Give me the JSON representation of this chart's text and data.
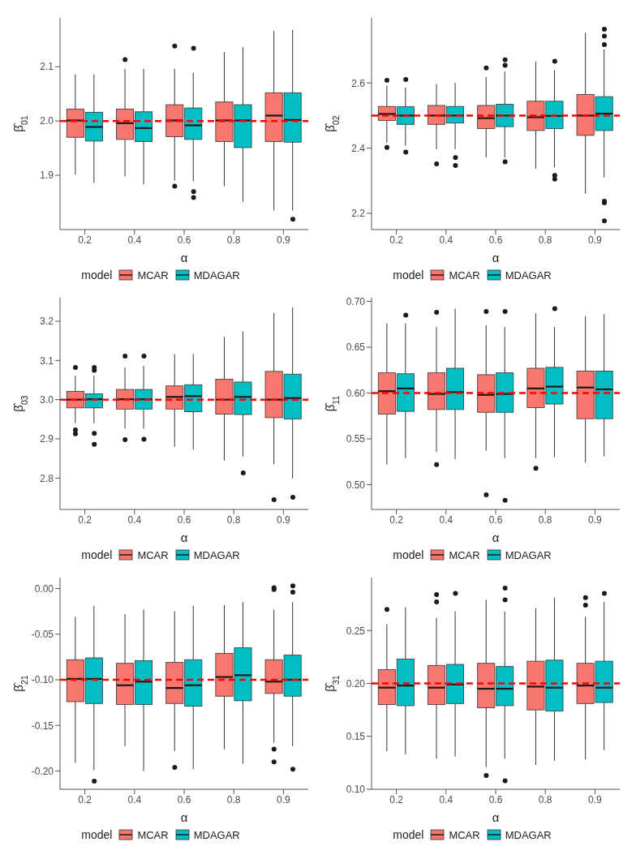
{
  "chart_data": [
    {
      "type": "box",
      "xlabel": "α",
      "ylabel": "β̂$_{01}$",
      "categories": [
        "0.2",
        "0.4",
        "0.6",
        "0.8",
        "0.9"
      ],
      "ylim": [
        1.8,
        2.19
      ],
      "yticks": [
        {
          "value": 1.9,
          "label": "1.9"
        },
        {
          "value": 2.0,
          "label": "2.0"
        },
        {
          "value": 2.1,
          "label": "2.1"
        }
      ],
      "legend": "bottom",
      "legend_title": "model",
      "ref_lines": [
        {
          "axis": "y",
          "value": 2.0,
          "color": "#ff0000",
          "line_style": "dashed"
        }
      ],
      "series": [
        {
          "name": "MCAR",
          "color": "#f8766d",
          "boxes": [
            {
              "low": 1.901,
              "q1": 1.97,
              "median": 2.001,
              "q3": 2.022,
              "high": 2.086
            },
            {
              "low": 1.898,
              "q1": 1.966,
              "median": 1.996,
              "q3": 2.022,
              "high": 2.096,
              "outliers": [
                2.113
              ]
            },
            {
              "low": 1.89,
              "q1": 1.971,
              "median": 2.001,
              "q3": 2.03,
              "high": 2.096,
              "outliers": [
                2.138,
                1.88
              ]
            },
            {
              "low": 1.88,
              "q1": 1.962,
              "median": 2.001,
              "q3": 2.035,
              "high": 2.127
            },
            {
              "low": 1.835,
              "q1": 1.962,
              "median": 2.01,
              "q3": 2.052,
              "high": 2.166
            }
          ]
        },
        {
          "name": "MDAGAR",
          "color": "#00bfc4",
          "boxes": [
            {
              "low": 1.886,
              "q1": 1.963,
              "median": 1.989,
              "q3": 2.016,
              "high": 2.086
            },
            {
              "low": 1.883,
              "q1": 1.962,
              "median": 1.987,
              "q3": 2.017,
              "high": 2.096
            },
            {
              "low": 1.889,
              "q1": 1.966,
              "median": 1.992,
              "q3": 2.024,
              "high": 2.089,
              "outliers": [
                2.134,
                1.87,
                1.859
              ]
            },
            {
              "low": 1.851,
              "q1": 1.951,
              "median": 2.001,
              "q3": 2.03,
              "high": 2.136
            },
            {
              "low": 1.835,
              "q1": 1.961,
              "median": 2.002,
              "q3": 2.052,
              "high": 2.168,
              "outliers": [
                1.819
              ]
            }
          ]
        }
      ]
    },
    {
      "type": "box",
      "xlabel": "α",
      "ylabel": "β̂$_{02}$",
      "categories": [
        "0.2",
        "0.4",
        "0.6",
        "0.8",
        "0.9"
      ],
      "ylim": [
        2.15,
        2.8
      ],
      "yticks": [
        {
          "value": 2.2,
          "label": "2.2"
        },
        {
          "value": 2.4,
          "label": "2.4"
        },
        {
          "value": 2.6,
          "label": "2.6"
        }
      ],
      "legend": "bottom",
      "legend_title": "model",
      "ref_lines": [
        {
          "axis": "y",
          "value": 2.5,
          "color": "#ff0000",
          "line_style": "dashed"
        }
      ],
      "series": [
        {
          "name": "MCAR",
          "color": "#f8766d",
          "boxes": [
            {
              "low": 2.416,
              "q1": 2.485,
              "median": 2.505,
              "q3": 2.528,
              "high": 2.592,
              "outliers": [
                2.608,
                2.402
              ]
            },
            {
              "low": 2.397,
              "q1": 2.473,
              "median": 2.5,
              "q3": 2.531,
              "high": 2.597,
              "outliers": [
                2.352
              ]
            },
            {
              "low": 2.371,
              "q1": 2.46,
              "median": 2.492,
              "q3": 2.531,
              "high": 2.618,
              "outliers": [
                2.646
              ]
            },
            {
              "low": 2.337,
              "q1": 2.454,
              "median": 2.495,
              "q3": 2.544,
              "high": 2.665
            },
            {
              "low": 2.26,
              "q1": 2.439,
              "median": 2.5,
              "q3": 2.565,
              "high": 2.754
            }
          ]
        },
        {
          "name": "MDAGAR",
          "color": "#00bfc4",
          "boxes": [
            {
              "low": 2.408,
              "q1": 2.473,
              "median": 2.5,
              "q3": 2.527,
              "high": 2.586,
              "outliers": [
                2.611,
                2.388
              ]
            },
            {
              "low": 2.397,
              "q1": 2.477,
              "median": 2.5,
              "q3": 2.528,
              "high": 2.601,
              "outliers": [
                2.371,
                2.347
              ]
            },
            {
              "low": 2.371,
              "q1": 2.466,
              "median": 2.5,
              "q3": 2.535,
              "high": 2.635,
              "outliers": [
                2.671,
                2.654,
                2.358
              ]
            },
            {
              "low": 2.341,
              "q1": 2.46,
              "median": 2.499,
              "q3": 2.544,
              "high": 2.639,
              "outliers": [
                2.667,
                2.316,
                2.305
              ]
            },
            {
              "low": 2.31,
              "q1": 2.454,
              "median": 2.506,
              "q3": 2.558,
              "high": 2.703,
              "outliers": [
                2.765,
                2.744,
                2.718,
                2.237,
                2.232,
                2.177
              ]
            }
          ]
        }
      ]
    },
    {
      "type": "box",
      "xlabel": "α",
      "ylabel": "β̂$_{03}$",
      "categories": [
        "0.2",
        "0.4",
        "0.6",
        "0.8",
        "0.9"
      ],
      "ylim": [
        2.72,
        3.26
      ],
      "yticks": [
        {
          "value": 2.8,
          "label": "2.8"
        },
        {
          "value": 2.9,
          "label": "2.9"
        },
        {
          "value": 3.0,
          "label": "3.0"
        },
        {
          "value": 3.1,
          "label": "3.1"
        },
        {
          "value": 3.2,
          "label": "3.2"
        }
      ],
      "legend": "bottom",
      "legend_title": "model",
      "ref_lines": [
        {
          "axis": "y",
          "value": 3.0,
          "color": "#ff0000",
          "line_style": "dashed"
        }
      ],
      "series": [
        {
          "name": "MCAR",
          "color": "#f8766d",
          "boxes": [
            {
              "low": 2.94,
              "q1": 2.979,
              "median": 3.0,
              "q3": 3.021,
              "high": 3.061,
              "outliers": [
                3.082,
                2.923,
                2.913
              ]
            },
            {
              "low": 2.926,
              "q1": 2.976,
              "median": 3.001,
              "q3": 3.026,
              "high": 3.082,
              "outliers": [
                3.111,
                2.898
              ]
            },
            {
              "low": 2.88,
              "q1": 2.976,
              "median": 3.007,
              "q3": 3.035,
              "high": 3.116
            },
            {
              "low": 2.845,
              "q1": 2.963,
              "median": 3.0,
              "q3": 3.052,
              "high": 3.16
            },
            {
              "low": 2.835,
              "q1": 2.954,
              "median": 3.0,
              "q3": 3.072,
              "high": 3.221,
              "outliers": [
                2.745
              ]
            }
          ]
        },
        {
          "name": "MDAGAR",
          "color": "#00bfc4",
          "boxes": [
            {
              "low": 2.94,
              "q1": 2.979,
              "median": 3.001,
              "q3": 3.015,
              "high": 3.061,
              "outliers": [
                3.082,
                3.075,
                2.914,
                2.886
              ]
            },
            {
              "low": 2.926,
              "q1": 2.976,
              "median": 3.001,
              "q3": 3.026,
              "high": 3.086,
              "outliers": [
                3.111,
                2.899
              ]
            },
            {
              "low": 2.873,
              "q1": 2.969,
              "median": 3.009,
              "q3": 3.038,
              "high": 3.116
            },
            {
              "low": 2.855,
              "q1": 2.962,
              "median": 3.007,
              "q3": 3.045,
              "high": 3.174,
              "outliers": [
                2.813
              ]
            },
            {
              "low": 2.799,
              "q1": 2.951,
              "median": 3.004,
              "q3": 3.065,
              "high": 3.235,
              "outliers": [
                2.751
              ]
            }
          ]
        }
      ]
    },
    {
      "type": "box",
      "xlabel": "α",
      "ylabel": "β̂$_{11}$",
      "categories": [
        "0.2",
        "0.4",
        "0.6",
        "0.8",
        "0.9"
      ],
      "ylim": [
        0.473,
        0.704
      ],
      "yticks": [
        {
          "value": 0.5,
          "label": "0.50"
        },
        {
          "value": 0.55,
          "label": "0.55"
        },
        {
          "value": 0.6,
          "label": "0.60"
        },
        {
          "value": 0.65,
          "label": "0.65"
        },
        {
          "value": 0.7,
          "label": "0.70"
        }
      ],
      "legend": "bottom",
      "legend_title": "model",
      "ref_lines": [
        {
          "axis": "y",
          "value": 0.6,
          "color": "#ff0000",
          "line_style": "dashed"
        }
      ],
      "series": [
        {
          "name": "MCAR",
          "color": "#f8766d",
          "boxes": [
            {
              "low": 0.522,
              "q1": 0.577,
              "median": 0.602,
              "q3": 0.622,
              "high": 0.676
            },
            {
              "low": 0.536,
              "q1": 0.582,
              "median": 0.599,
              "q3": 0.622,
              "high": 0.672,
              "outliers": [
                0.688,
                0.522
              ]
            },
            {
              "low": 0.537,
              "q1": 0.579,
              "median": 0.598,
              "q3": 0.62,
              "high": 0.674,
              "outliers": [
                0.689,
                0.489
              ]
            },
            {
              "low": 0.529,
              "q1": 0.584,
              "median": 0.605,
              "q3": 0.627,
              "high": 0.687,
              "outliers": [
                0.518
              ]
            },
            {
              "low": 0.524,
              "q1": 0.572,
              "median": 0.606,
              "q3": 0.624,
              "high": 0.684
            }
          ]
        },
        {
          "name": "MDAGAR",
          "color": "#00bfc4",
          "boxes": [
            {
              "low": 0.529,
              "q1": 0.58,
              "median": 0.605,
              "q3": 0.621,
              "high": 0.676,
              "outliers": [
                0.685
              ]
            },
            {
              "low": 0.528,
              "q1": 0.582,
              "median": 0.601,
              "q3": 0.627,
              "high": 0.692
            },
            {
              "low": 0.529,
              "q1": 0.579,
              "median": 0.599,
              "q3": 0.622,
              "high": 0.672,
              "outliers": [
                0.689,
                0.483
              ]
            },
            {
              "low": 0.53,
              "q1": 0.588,
              "median": 0.607,
              "q3": 0.628,
              "high": 0.672,
              "outliers": [
                0.692
              ]
            },
            {
              "low": 0.531,
              "q1": 0.572,
              "median": 0.604,
              "q3": 0.624,
              "high": 0.686
            }
          ]
        }
      ]
    },
    {
      "type": "box",
      "xlabel": "α",
      "ylabel": "β̂$_{21}$",
      "categories": [
        "0.2",
        "0.4",
        "0.6",
        "0.8",
        "0.9"
      ],
      "ylim": [
        -0.22,
        0.012
      ],
      "yticks": [
        {
          "value": -0.2,
          "label": "-0.20"
        },
        {
          "value": -0.15,
          "label": "-0.15"
        },
        {
          "value": -0.1,
          "label": "-0.10"
        },
        {
          "value": -0.05,
          "label": "-0.05"
        },
        {
          "value": 0,
          "label": "0.00"
        }
      ],
      "legend": "bottom",
      "legend_title": "model",
      "ref_lines": [
        {
          "axis": "y",
          "value": -0.1,
          "color": "#ff0000",
          "line_style": "dashed"
        }
      ],
      "series": [
        {
          "name": "MCAR",
          "color": "#f8766d",
          "boxes": [
            {
              "low": -0.191,
              "q1": -0.124,
              "median": -0.099,
              "q3": -0.078,
              "high": -0.031
            },
            {
              "low": -0.173,
              "q1": -0.127,
              "median": -0.106,
              "q3": -0.082,
              "high": -0.028
            },
            {
              "low": -0.178,
              "q1": -0.126,
              "median": -0.109,
              "q3": -0.081,
              "high": -0.025,
              "outliers": [
                -0.196
              ]
            },
            {
              "low": -0.176,
              "q1": -0.118,
              "median": -0.097,
              "q3": -0.071,
              "high": -0.018
            },
            {
              "low": -0.169,
              "q1": -0.115,
              "median": -0.102,
              "q3": -0.078,
              "high": -0.023,
              "outliers": [
                0.001,
                -0.001,
                -0.176,
                -0.19
              ]
            }
          ]
        },
        {
          "name": "MDAGAR",
          "color": "#00bfc4",
          "boxes": [
            {
              "low": -0.199,
              "q1": -0.126,
              "median": -0.099,
              "q3": -0.076,
              "high": -0.019,
              "outliers": [
                -0.211
              ]
            },
            {
              "low": -0.2,
              "q1": -0.127,
              "median": -0.102,
              "q3": -0.079,
              "high": -0.023
            },
            {
              "low": -0.198,
              "q1": -0.129,
              "median": -0.106,
              "q3": -0.078,
              "high": -0.019
            },
            {
              "low": -0.192,
              "q1": -0.123,
              "median": -0.095,
              "q3": -0.065,
              "high": -0.015
            },
            {
              "low": -0.173,
              "q1": -0.118,
              "median": -0.1,
              "q3": -0.073,
              "high": -0.015,
              "outliers": [
                0.003,
                -0.004,
                -0.198
              ]
            }
          ]
        }
      ]
    },
    {
      "type": "box",
      "xlabel": "α",
      "ylabel": "β̂$_{31}$",
      "categories": [
        "0.2",
        "0.4",
        "0.6",
        "0.8",
        "0.9"
      ],
      "ylim": [
        0.1,
        0.3
      ],
      "yticks": [
        {
          "value": 0.1,
          "label": "0.10"
        },
        {
          "value": 0.15,
          "label": "0.15"
        },
        {
          "value": 0.2,
          "label": "0.20"
        },
        {
          "value": 0.25,
          "label": "0.25"
        }
      ],
      "legend": "bottom",
      "legend_title": "model",
      "ref_lines": [
        {
          "axis": "y",
          "value": 0.2,
          "color": "#ff0000",
          "line_style": "dashed"
        }
      ],
      "series": [
        {
          "name": "MCAR",
          "color": "#f8766d",
          "boxes": [
            {
              "low": 0.136,
              "q1": 0.18,
              "median": 0.196,
              "q3": 0.213,
              "high": 0.256,
              "outliers": [
                0.27
              ]
            },
            {
              "low": 0.129,
              "q1": 0.18,
              "median": 0.196,
              "q3": 0.217,
              "high": 0.262,
              "outliers": [
                0.284,
                0.277
              ]
            },
            {
              "low": 0.121,
              "q1": 0.177,
              "median": 0.195,
              "q3": 0.219,
              "high": 0.279,
              "outliers": [
                0.113
              ]
            },
            {
              "low": 0.123,
              "q1": 0.175,
              "median": 0.197,
              "q3": 0.221,
              "high": 0.271
            },
            {
              "low": 0.128,
              "q1": 0.181,
              "median": 0.198,
              "q3": 0.219,
              "high": 0.263,
              "outliers": [
                0.281,
                0.274
              ]
            }
          ]
        },
        {
          "name": "MDAGAR",
          "color": "#00bfc4",
          "boxes": [
            {
              "low": 0.133,
              "q1": 0.179,
              "median": 0.198,
              "q3": 0.223,
              "high": 0.272
            },
            {
              "low": 0.131,
              "q1": 0.181,
              "median": 0.199,
              "q3": 0.218,
              "high": 0.268,
              "outliers": [
                0.285
              ]
            },
            {
              "low": 0.129,
              "q1": 0.179,
              "median": 0.195,
              "q3": 0.216,
              "high": 0.268,
              "outliers": [
                0.29,
                0.279,
                0.108
              ]
            },
            {
              "low": 0.127,
              "q1": 0.174,
              "median": 0.196,
              "q3": 0.222,
              "high": 0.281
            },
            {
              "low": 0.137,
              "q1": 0.182,
              "median": 0.196,
              "q3": 0.221,
              "high": 0.277,
              "outliers": [
                0.285
              ]
            }
          ]
        }
      ]
    }
  ]
}
